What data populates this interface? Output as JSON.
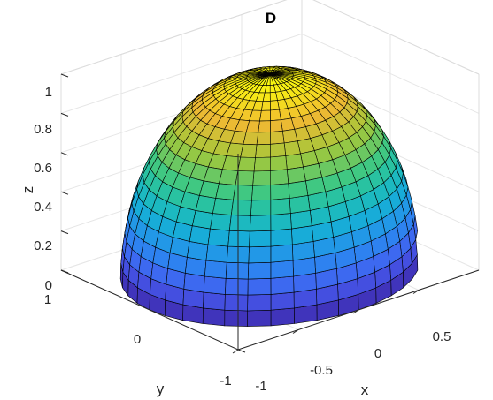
{
  "chart_data": {
    "type": "surface",
    "title": "D",
    "surface": "upper hemisphere z = sqrt(1 - x^2 - y^2)",
    "resolution": {
      "theta_segments": 40,
      "phi_rings": 20
    },
    "colormap": "parula",
    "edge_color": "#000000",
    "xlabel": "x",
    "ylabel": "y",
    "zlabel": "z",
    "xlim": [
      -1,
      1
    ],
    "ylim": [
      -1,
      1
    ],
    "zlim": [
      0,
      1
    ],
    "xticks": [
      "-1",
      "-0.5",
      "0",
      "0.5"
    ],
    "yticks": [
      "-1",
      "0",
      "1"
    ],
    "zticks": [
      "0",
      "0.2",
      "0.4",
      "0.6",
      "0.8",
      "1"
    ],
    "grid": true,
    "box": true
  }
}
